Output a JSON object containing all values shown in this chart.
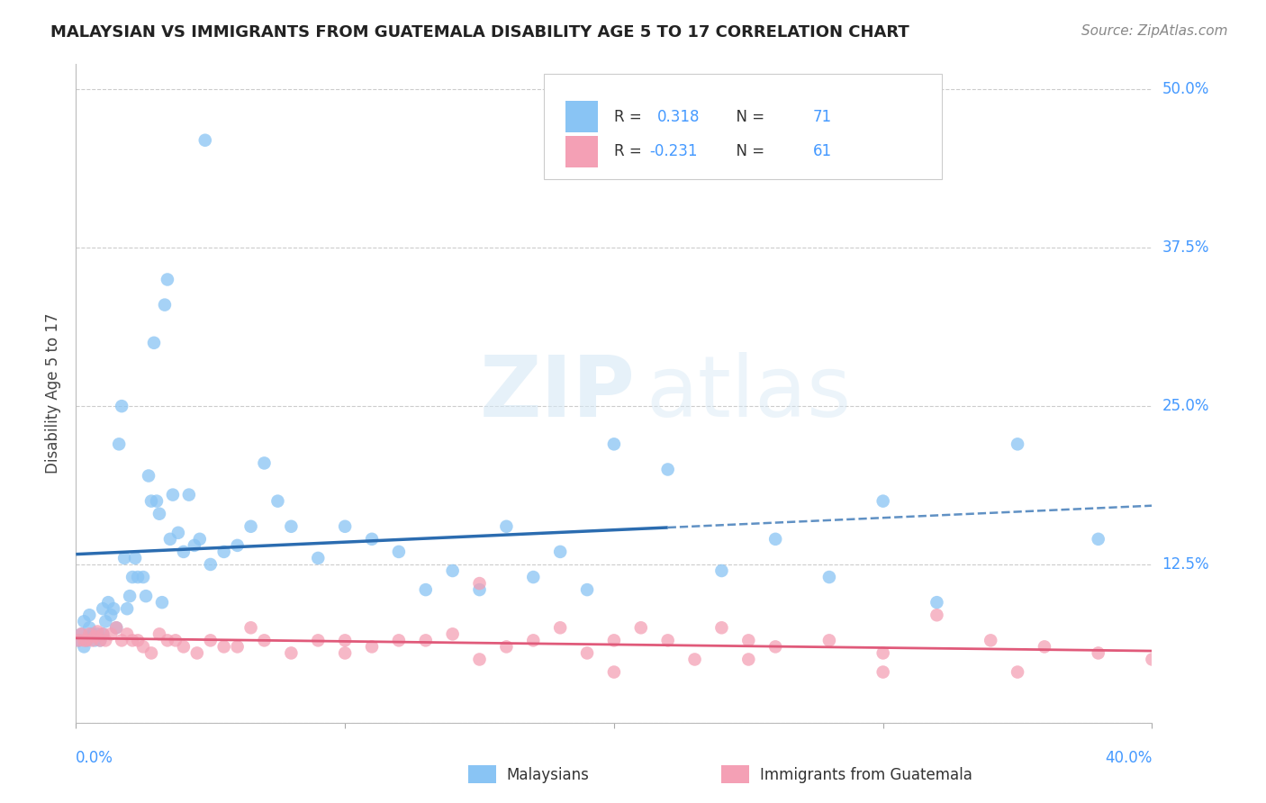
{
  "title": "MALAYSIAN VS IMMIGRANTS FROM GUATEMALA DISABILITY AGE 5 TO 17 CORRELATION CHART",
  "source": "Source: ZipAtlas.com",
  "ylabel": "Disability Age 5 to 17",
  "color_malaysian": "#89C4F4",
  "color_guatemalan": "#F4A0B5",
  "line_color_malaysian": "#2B6CB0",
  "line_color_guatemalan": "#E05A7A",
  "xlim": [
    0.0,
    0.4
  ],
  "ylim": [
    0.0,
    0.52
  ],
  "ytick_values": [
    0.0,
    0.125,
    0.25,
    0.375,
    0.5
  ],
  "line_solid_end": 0.22,
  "malaysian_x": [
    0.001,
    0.002,
    0.003,
    0.003,
    0.004,
    0.005,
    0.005,
    0.006,
    0.007,
    0.008,
    0.009,
    0.01,
    0.01,
    0.011,
    0.012,
    0.013,
    0.014,
    0.015,
    0.016,
    0.017,
    0.018,
    0.019,
    0.02,
    0.021,
    0.022,
    0.023,
    0.025,
    0.026,
    0.027,
    0.028,
    0.029,
    0.03,
    0.031,
    0.032,
    0.033,
    0.034,
    0.035,
    0.036,
    0.038,
    0.04,
    0.042,
    0.044,
    0.046,
    0.048,
    0.05,
    0.055,
    0.06,
    0.065,
    0.07,
    0.075,
    0.08,
    0.09,
    0.1,
    0.11,
    0.12,
    0.13,
    0.14,
    0.15,
    0.16,
    0.17,
    0.18,
    0.19,
    0.2,
    0.22,
    0.24,
    0.26,
    0.28,
    0.3,
    0.32,
    0.35,
    0.38
  ],
  "malaysian_y": [
    0.065,
    0.07,
    0.06,
    0.08,
    0.065,
    0.075,
    0.085,
    0.07,
    0.065,
    0.07,
    0.065,
    0.07,
    0.09,
    0.08,
    0.095,
    0.085,
    0.09,
    0.075,
    0.22,
    0.25,
    0.13,
    0.09,
    0.1,
    0.115,
    0.13,
    0.115,
    0.115,
    0.1,
    0.195,
    0.175,
    0.3,
    0.175,
    0.165,
    0.095,
    0.33,
    0.35,
    0.145,
    0.18,
    0.15,
    0.135,
    0.18,
    0.14,
    0.145,
    0.46,
    0.125,
    0.135,
    0.14,
    0.155,
    0.205,
    0.175,
    0.155,
    0.13,
    0.155,
    0.145,
    0.135,
    0.105,
    0.12,
    0.105,
    0.155,
    0.115,
    0.135,
    0.105,
    0.22,
    0.2,
    0.12,
    0.145,
    0.115,
    0.175,
    0.095,
    0.22,
    0.145
  ],
  "guatemalan_x": [
    0.001,
    0.002,
    0.003,
    0.004,
    0.005,
    0.006,
    0.007,
    0.008,
    0.009,
    0.01,
    0.011,
    0.013,
    0.015,
    0.017,
    0.019,
    0.021,
    0.023,
    0.025,
    0.028,
    0.031,
    0.034,
    0.037,
    0.04,
    0.045,
    0.05,
    0.055,
    0.06,
    0.065,
    0.07,
    0.08,
    0.09,
    0.1,
    0.11,
    0.12,
    0.13,
    0.14,
    0.15,
    0.16,
    0.17,
    0.18,
    0.19,
    0.2,
    0.21,
    0.22,
    0.23,
    0.24,
    0.25,
    0.26,
    0.28,
    0.3,
    0.32,
    0.34,
    0.36,
    0.38,
    0.4,
    0.1,
    0.15,
    0.2,
    0.25,
    0.3,
    0.35
  ],
  "guatemalan_y": [
    0.065,
    0.07,
    0.065,
    0.065,
    0.07,
    0.065,
    0.068,
    0.072,
    0.065,
    0.07,
    0.065,
    0.07,
    0.075,
    0.065,
    0.07,
    0.065,
    0.065,
    0.06,
    0.055,
    0.07,
    0.065,
    0.065,
    0.06,
    0.055,
    0.065,
    0.06,
    0.06,
    0.075,
    0.065,
    0.055,
    0.065,
    0.055,
    0.06,
    0.065,
    0.065,
    0.07,
    0.05,
    0.06,
    0.065,
    0.075,
    0.055,
    0.065,
    0.075,
    0.065,
    0.05,
    0.075,
    0.065,
    0.06,
    0.065,
    0.055,
    0.085,
    0.065,
    0.06,
    0.055,
    0.05,
    0.065,
    0.11,
    0.04,
    0.05,
    0.04,
    0.04
  ]
}
